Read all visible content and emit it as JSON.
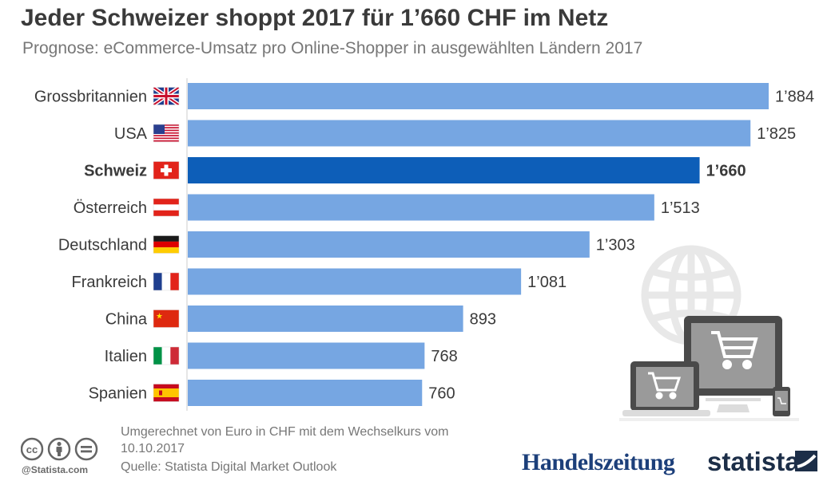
{
  "header": {
    "title": "Jeder Schweizer shoppt 2017 für 1’660 CHF im Netz",
    "subtitle": "Prognose: eCommerce-Umsatz pro Online-Shopper in ausgewählten Ländern 2017"
  },
  "chart_data": {
    "type": "bar",
    "orientation": "horizontal",
    "categories": [
      "Grossbritannien",
      "USA",
      "Schweiz",
      "Österreich",
      "Deutschland",
      "Frankreich",
      "China",
      "Italien",
      "Spanien"
    ],
    "values": [
      1884,
      1825,
      1660,
      1513,
      1303,
      1081,
      893,
      768,
      760
    ],
    "value_labels": [
      "1’884",
      "1’825",
      "1’660",
      "1’513",
      "1’303",
      "1’081",
      "893",
      "768",
      "760"
    ],
    "highlight": "Schweiz",
    "xlim": [
      0,
      1884
    ],
    "unit": "CHF",
    "grid": false,
    "colors": {
      "bar": "#76a6e2",
      "highlight": "#0d5eb8",
      "label": "#3a3a3a"
    },
    "flags": [
      "uk-flag-icon",
      "us-flag-icon",
      "swiss-flag-icon",
      "austria-flag-icon",
      "germany-flag-icon",
      "france-flag-icon",
      "china-flag-icon",
      "italy-flag-icon",
      "spain-flag-icon"
    ]
  },
  "footer": {
    "note": "Umgerechnet von Euro in CHF mit dem Wechselkurs vom 10.10.2017",
    "source": "Quelle: Statista Digital Market Outlook",
    "copyright": "@Statista.com",
    "brand_left": "Handelszeitung",
    "brand_right": "statista"
  }
}
